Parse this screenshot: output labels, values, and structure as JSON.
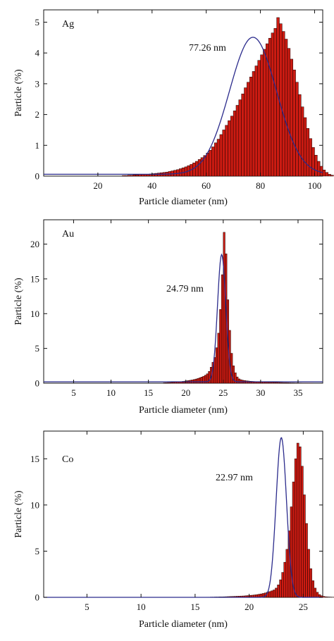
{
  "colors": {
    "bar_fill": "#cc1b12",
    "bar_stroke": "#1a0000",
    "fit_line": "#2b2b8c",
    "axis": "#111111",
    "background": "#ffffff"
  },
  "chart_data": [
    {
      "type": "bar",
      "panel_label": "Ag",
      "annotation": "77.26 nm",
      "xlabel": "Particle diameter (nm)",
      "ylabel": "Particle (%)",
      "xlim": [
        0,
        103
      ],
      "ylim": [
        0,
        5.4
      ],
      "xticks": [
        20,
        40,
        60,
        80,
        100
      ],
      "yticks": [
        0,
        1,
        2,
        3,
        4,
        5
      ],
      "grid": false,
      "histogram": {
        "bin_start": 29,
        "bin_width": 1.0,
        "values": [
          0.02,
          0.02,
          0.03,
          0.03,
          0.04,
          0.04,
          0.05,
          0.05,
          0.06,
          0.06,
          0.07,
          0.08,
          0.09,
          0.1,
          0.11,
          0.12,
          0.13,
          0.15,
          0.17,
          0.19,
          0.21,
          0.24,
          0.27,
          0.3,
          0.34,
          0.38,
          0.43,
          0.48,
          0.54,
          0.6,
          0.67,
          0.75,
          0.84,
          0.95,
          1.08,
          1.2,
          1.35,
          1.5,
          1.65,
          1.8,
          1.95,
          2.12,
          2.3,
          2.48,
          2.67,
          2.87,
          3.05,
          3.22,
          3.4,
          3.58,
          3.76,
          3.94,
          4.12,
          4.3,
          4.48,
          4.65,
          4.8,
          5.15,
          4.95,
          4.7,
          4.45,
          4.15,
          3.8,
          3.45,
          3.05,
          2.65,
          2.25,
          1.9,
          1.55,
          1.22,
          0.93,
          0.68,
          0.48,
          0.32,
          0.2,
          0.12,
          0.06,
          0.03
        ]
      },
      "fit": {
        "type": "gaussian",
        "center": 77.26,
        "sigma": 8.7,
        "amplitude": 4.45,
        "baseline": 0.06
      }
    },
    {
      "type": "bar",
      "panel_label": "Au",
      "annotation": "24.79 nm",
      "xlabel": "Particle diameter (nm)",
      "ylabel": "Particle (%)",
      "xlim": [
        1,
        38.3
      ],
      "ylim": [
        0,
        23.5
      ],
      "xticks": [
        5,
        10,
        15,
        20,
        25,
        30,
        35
      ],
      "yticks": [
        0,
        5,
        10,
        15,
        20
      ],
      "grid": false,
      "histogram": {
        "bin_start": 17.0,
        "bin_width": 0.25,
        "values": [
          0.06,
          0.07,
          0.09,
          0.1,
          0.12,
          0.14,
          0.16,
          0.18,
          0.2,
          0.23,
          0.26,
          0.3,
          0.34,
          0.38,
          0.42,
          0.47,
          0.53,
          0.6,
          0.68,
          0.77,
          0.88,
          1.0,
          1.15,
          1.35,
          1.7,
          2.3,
          3.0,
          3.7,
          5.1,
          7.2,
          10.6,
          15.6,
          21.7,
          18.6,
          12.0,
          7.6,
          4.3,
          2.5,
          1.5,
          0.9,
          0.62,
          0.5,
          0.42,
          0.38,
          0.34,
          0.31,
          0.28,
          0.26,
          0.24,
          0.22,
          0.2,
          0.19,
          0.18,
          0.17,
          0.16,
          0.16,
          0.15,
          0.14,
          0.13,
          0.12,
          0.12,
          0.11,
          0.1,
          0.09,
          0.08,
          0.08,
          0.07,
          0.06,
          0.05,
          0.05,
          0.04,
          0.04,
          0.03,
          0.03,
          0.02,
          0.02,
          0.02,
          0.01,
          0.01,
          0.01
        ]
      },
      "fit": {
        "type": "gaussian",
        "center": 24.79,
        "sigma": 0.55,
        "amplitude": 18.3,
        "baseline": 0.2
      }
    },
    {
      "type": "bar",
      "panel_label": "Co",
      "annotation": "22.97 nm",
      "xlabel": "Particle diameter (nm)",
      "ylabel": "Particle (%)",
      "xlim": [
        1,
        26.8
      ],
      "ylim": [
        0,
        18
      ],
      "xticks": [
        5,
        10,
        15,
        20,
        25
      ],
      "yticks": [
        0,
        5,
        10,
        15
      ],
      "grid": false,
      "histogram": {
        "bin_start": 16.0,
        "bin_width": 0.2,
        "values": [
          0.02,
          0.02,
          0.03,
          0.03,
          0.04,
          0.04,
          0.05,
          0.05,
          0.06,
          0.07,
          0.08,
          0.09,
          0.1,
          0.11,
          0.12,
          0.13,
          0.14,
          0.15,
          0.17,
          0.19,
          0.21,
          0.23,
          0.26,
          0.29,
          0.33,
          0.37,
          0.42,
          0.48,
          0.55,
          0.62,
          0.7,
          0.8,
          1.0,
          1.35,
          1.9,
          2.7,
          3.8,
          5.2,
          7.2,
          9.8,
          12.5,
          15.0,
          16.7,
          16.3,
          14.2,
          11.1,
          8.0,
          5.2,
          3.1,
          1.8,
          1.0,
          0.55,
          0.3,
          0.17,
          0.1,
          0.06,
          0.04,
          0.03,
          0.02,
          0.02
        ]
      },
      "fit": {
        "type": "gaussian",
        "center": 22.97,
        "sigma": 0.48,
        "amplitude": 17.3,
        "baseline": 0.0
      }
    }
  ]
}
